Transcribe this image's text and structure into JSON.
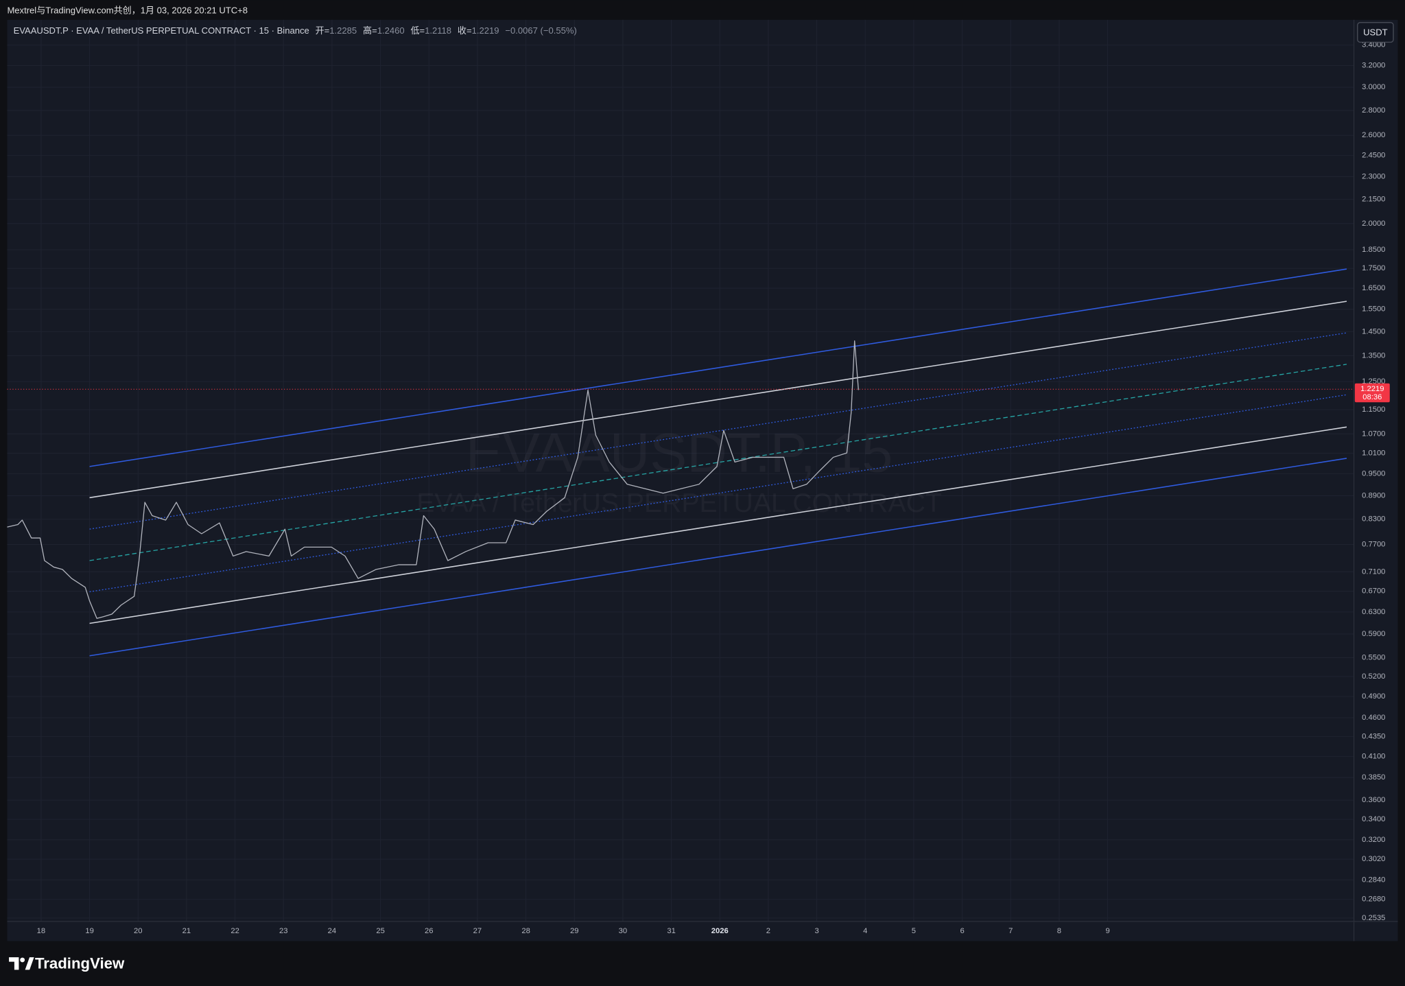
{
  "header": {
    "caption": "Mextrel与TradingView.com共创，1月 03, 2026 20:21 UTC+8"
  },
  "footer": {
    "brand": "TradingView"
  },
  "chart_data": {
    "type": "line",
    "legend": {
      "symbol": "EVAAUSDT.P · EVAA / TetherUS PERPETUAL CONTRACT · 15 · Binance",
      "open_label": "开=",
      "open": "1.2285",
      "high_label": "高=",
      "high": "1.2460",
      "low_label": "低=",
      "low": "1.2118",
      "close_label": "收=",
      "close": "1.2219",
      "change": "−0.0067 (−0.55%)"
    },
    "currency": "USDT",
    "last_price": {
      "value": 1.2219,
      "label": "1.2219",
      "countdown": "08:36",
      "color": "#f23645"
    },
    "watermark": {
      "symbol": "EVAAUSDT.P, 15",
      "description": "EVAA / TetherUS PERPETUAL CONTRACT"
    },
    "color": "#b2b5be",
    "x": [
      -0.7,
      -0.48,
      -0.39,
      -0.2,
      -0.02,
      0.07,
      0.26,
      0.44,
      0.63,
      0.91,
      1.0,
      1.15,
      1.28,
      1.46,
      1.65,
      1.92,
      2.02,
      2.14,
      2.29,
      2.57,
      2.79,
      3.03,
      3.31,
      3.68,
      3.96,
      4.23,
      4.7,
      5.03,
      5.16,
      5.43,
      5.99,
      6.27,
      6.54,
      6.91,
      7.38,
      7.74,
      7.89,
      8.11,
      8.39,
      8.76,
      9.22,
      9.59,
      9.78,
      10.15,
      10.43,
      10.8,
      11.07,
      11.28,
      11.44,
      11.72,
      12.09,
      12.46,
      12.83,
      13.2,
      13.57,
      13.94,
      14.08,
      14.31,
      14.68,
      15.05,
      15.32,
      15.51,
      15.79,
      16.06,
      16.34,
      16.62,
      16.71,
      16.78,
      16.86
    ],
    "values": [
      0.811,
      0.817,
      0.828,
      0.785,
      0.785,
      0.734,
      0.72,
      0.715,
      0.696,
      0.678,
      0.651,
      0.618,
      0.621,
      0.626,
      0.643,
      0.66,
      0.734,
      0.873,
      0.839,
      0.828,
      0.873,
      0.817,
      0.795,
      0.821,
      0.744,
      0.754,
      0.744,
      0.806,
      0.744,
      0.764,
      0.764,
      0.744,
      0.696,
      0.715,
      0.725,
      0.725,
      0.839,
      0.806,
      0.734,
      0.754,
      0.774,
      0.774,
      0.828,
      0.817,
      0.85,
      0.885,
      0.998,
      1.219,
      1.066,
      0.984,
      0.921,
      0.909,
      0.897,
      0.909,
      0.921,
      0.971,
      1.081,
      0.984,
      0.998,
      0.998,
      0.998,
      0.909,
      0.921,
      0.959,
      0.998,
      1.011,
      1.14,
      1.411,
      1.219
    ],
    "xlim": [
      -0.7,
      27.08
    ],
    "xticks": [
      {
        "value": 0,
        "label": "18"
      },
      {
        "value": 1,
        "label": "19"
      },
      {
        "value": 2,
        "label": "20"
      },
      {
        "value": 3,
        "label": "21"
      },
      {
        "value": 4,
        "label": "22"
      },
      {
        "value": 5,
        "label": "23"
      },
      {
        "value": 6,
        "label": "24"
      },
      {
        "value": 7,
        "label": "25"
      },
      {
        "value": 8,
        "label": "26"
      },
      {
        "value": 9,
        "label": "27"
      },
      {
        "value": 10,
        "label": "28"
      },
      {
        "value": 11,
        "label": "29"
      },
      {
        "value": 12,
        "label": "30"
      },
      {
        "value": 13,
        "label": "31"
      },
      {
        "value": 14,
        "label": "2026",
        "bold": true
      },
      {
        "value": 15,
        "label": "2"
      },
      {
        "value": 16,
        "label": "3"
      },
      {
        "value": 17,
        "label": "4"
      },
      {
        "value": 18,
        "label": "5"
      },
      {
        "value": 19,
        "label": "6"
      },
      {
        "value": 20,
        "label": "7"
      },
      {
        "value": 21,
        "label": "8"
      },
      {
        "value": 22,
        "label": "9"
      }
    ],
    "ylim": [
      0.251,
      3.666
    ],
    "log_scale": true,
    "grid": true,
    "yticks": [
      {
        "value": 3.4,
        "label": "3.4000"
      },
      {
        "value": 3.2,
        "label": "3.2000"
      },
      {
        "value": 3,
        "label": "3.0000"
      },
      {
        "value": 2.8,
        "label": "2.8000"
      },
      {
        "value": 2.6,
        "label": "2.6000"
      },
      {
        "value": 2.45,
        "label": "2.4500"
      },
      {
        "value": 2.3,
        "label": "2.3000"
      },
      {
        "value": 2.15,
        "label": "2.1500"
      },
      {
        "value": 2,
        "label": "2.0000"
      },
      {
        "value": 1.85,
        "label": "1.8500"
      },
      {
        "value": 1.75,
        "label": "1.7500"
      },
      {
        "value": 1.65,
        "label": "1.6500"
      },
      {
        "value": 1.55,
        "label": "1.5500"
      },
      {
        "value": 1.45,
        "label": "1.4500"
      },
      {
        "value": 1.35,
        "label": "1.3500"
      },
      {
        "value": 1.25,
        "label": "1.2500"
      },
      {
        "value": 1.15,
        "label": "1.1500"
      },
      {
        "value": 1.07,
        "label": "1.0700"
      },
      {
        "value": 1.01,
        "label": "1.0100"
      },
      {
        "value": 0.95,
        "label": "0.9500"
      },
      {
        "value": 0.89,
        "label": "0.8900"
      },
      {
        "value": 0.83,
        "label": "0.8300"
      },
      {
        "value": 0.77,
        "label": "0.7700"
      },
      {
        "value": 0.71,
        "label": "0.7100"
      },
      {
        "value": 0.67,
        "label": "0.6700"
      },
      {
        "value": 0.63,
        "label": "0.6300"
      },
      {
        "value": 0.59,
        "label": "0.5900"
      },
      {
        "value": 0.55,
        "label": "0.5500"
      },
      {
        "value": 0.52,
        "label": "0.5200"
      },
      {
        "value": 0.49,
        "label": "0.4900"
      },
      {
        "value": 0.46,
        "label": "0.4600"
      },
      {
        "value": 0.435,
        "label": "0.4350"
      },
      {
        "value": 0.41,
        "label": "0.4100"
      },
      {
        "value": 0.385,
        "label": "0.3850"
      },
      {
        "value": 0.36,
        "label": "0.3600"
      },
      {
        "value": 0.34,
        "label": "0.3400"
      },
      {
        "value": 0.32,
        "label": "0.3200"
      },
      {
        "value": 0.302,
        "label": "0.3020"
      },
      {
        "value": 0.284,
        "label": "0.2840"
      },
      {
        "value": 0.268,
        "label": "0.2680"
      },
      {
        "value": 0.2535,
        "label": "0.2535"
      }
    ],
    "channel_lines": [
      {
        "x": [
          1.0,
          26.93
        ],
        "values": [
          0.971,
          1.747
        ],
        "color": "#2f5be0",
        "style": "solid"
      },
      {
        "x": [
          1.0,
          26.93
        ],
        "values": [
          0.885,
          1.587
        ],
        "color": "#d1d4dc",
        "style": "solid"
      },
      {
        "x": [
          1.0,
          26.93
        ],
        "values": [
          0.806,
          1.445
        ],
        "color": "#2f5be0",
        "style": "dotted"
      },
      {
        "x": [
          1.0,
          26.93
        ],
        "values": [
          0.734,
          1.316
        ],
        "color": "#26a6a6",
        "style": "dashed"
      },
      {
        "x": [
          1.0,
          26.93
        ],
        "values": [
          0.669,
          1.202
        ],
        "color": "#2f5be0",
        "style": "dotted"
      },
      {
        "x": [
          1.0,
          26.93
        ],
        "values": [
          0.609,
          1.092
        ],
        "color": "#d1d4dc",
        "style": "solid"
      },
      {
        "x": [
          1.0,
          26.93
        ],
        "values": [
          0.553,
          0.995
        ],
        "color": "#2f5be0",
        "style": "solid"
      }
    ]
  }
}
